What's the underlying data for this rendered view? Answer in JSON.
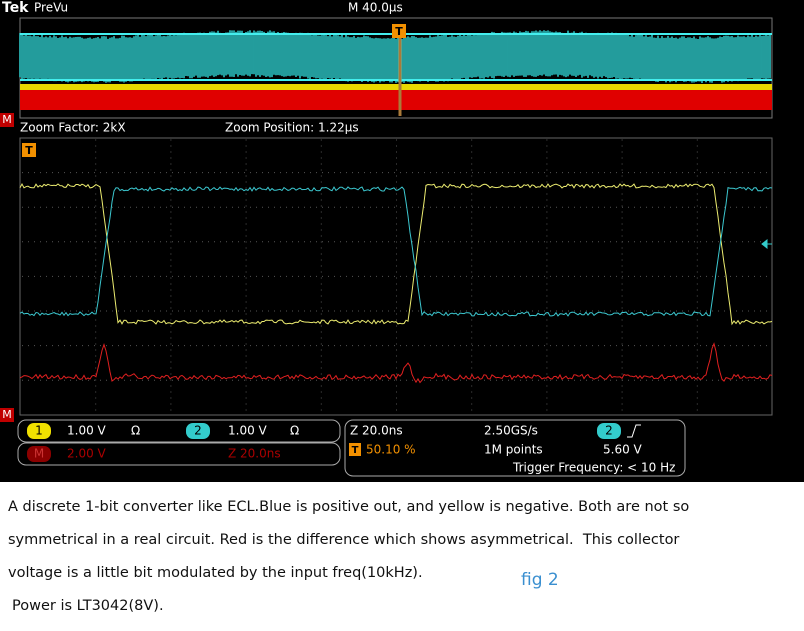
{
  "header": {
    "brand": "Tek",
    "mode": "PreVu",
    "timebase": "M 40.0µs",
    "trigger_marker": "T"
  },
  "zoom": {
    "factor": "Zoom Factor: 2kX",
    "position": "Zoom Position: 1.22µs",
    "trigger_marker": "T"
  },
  "markers": {
    "math": "M"
  },
  "channels": [
    {
      "label": "1",
      "scale": "1.00 V",
      "coupling": "Ω"
    },
    {
      "label": "2",
      "scale": "1.00 V",
      "coupling": "Ω"
    }
  ],
  "math": {
    "label": "M",
    "scale": "2.00 V",
    "zoom": "Z 20.0ns"
  },
  "acquisition": {
    "zoom": "Z 20.0ns",
    "trigger_position_marker": "T",
    "trigger_position": "50.10 %",
    "sample_rate": "2.50GS/s",
    "record_length": "1M points",
    "trigger_source": "2",
    "trigger_level": "5.60 V",
    "trigger_frequency": "Trigger Frequency: < 10 Hz"
  },
  "caption": {
    "lines": [
      "A discrete 1-bit converter like ECL.Blue is positive out, and yellow is negative. Both are not so",
      "symmetrical in a real circuit. Red is the difference which shows asymmetrical.  This collector",
      "voltage is a little bit modulated by the input freq(10kHz).",
      "Power is LT3042(8V)."
    ],
    "figure_label": "fig 2"
  }
}
